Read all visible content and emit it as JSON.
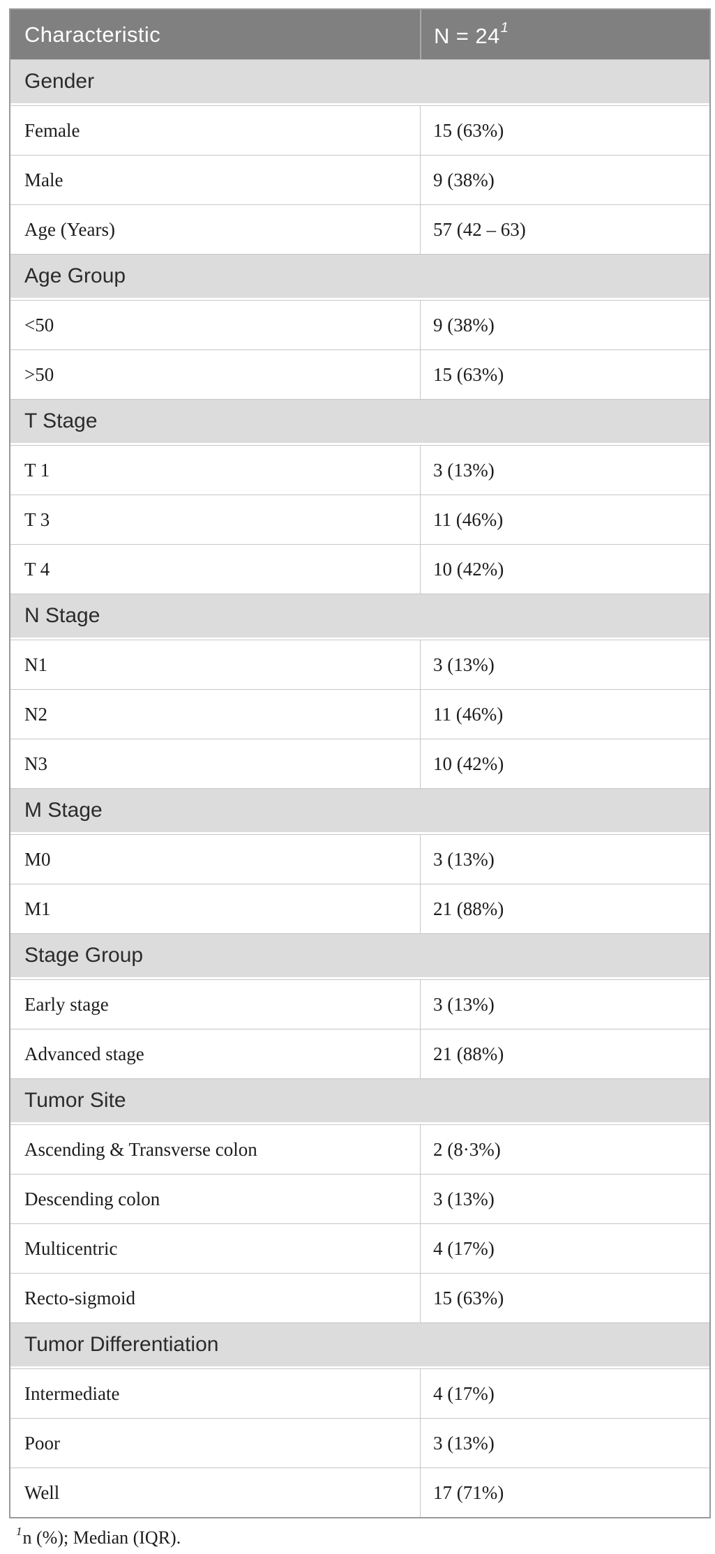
{
  "header": {
    "characteristic_label": "Characteristic",
    "n_label": "N = 24",
    "n_footnote_marker": "1"
  },
  "rows": [
    {
      "type": "section",
      "label": "Gender"
    },
    {
      "type": "data",
      "label": "Female",
      "value": "15 (63%)"
    },
    {
      "type": "data",
      "label": "Male",
      "value": "9 (38%)"
    },
    {
      "type": "data",
      "label": "Age (Years)",
      "value": "57 (42 – 63)"
    },
    {
      "type": "section",
      "label": "Age Group"
    },
    {
      "type": "data",
      "label": "<50",
      "value": "9 (38%)"
    },
    {
      "type": "data",
      "label": ">50",
      "value": "15 (63%)"
    },
    {
      "type": "section",
      "label": "T Stage"
    },
    {
      "type": "data",
      "label": "T 1",
      "value": "3 (13%)"
    },
    {
      "type": "data",
      "label": "T 3",
      "value": "11 (46%)"
    },
    {
      "type": "data",
      "label": "T 4",
      "value": "10 (42%)"
    },
    {
      "type": "section",
      "label": "N Stage"
    },
    {
      "type": "data",
      "label": "N1",
      "value": "3 (13%)"
    },
    {
      "type": "data",
      "label": "N2",
      "value": "11 (46%)"
    },
    {
      "type": "data",
      "label": "N3",
      "value": "10 (42%)"
    },
    {
      "type": "section",
      "label": "M Stage"
    },
    {
      "type": "data",
      "label": "M0",
      "value": "3 (13%)"
    },
    {
      "type": "data",
      "label": "M1",
      "value": "21 (88%)"
    },
    {
      "type": "section",
      "label": "Stage Group"
    },
    {
      "type": "data",
      "label": "Early stage",
      "value": "3 (13%)"
    },
    {
      "type": "data",
      "label": "Advanced stage",
      "value": "21 (88%)"
    },
    {
      "type": "section",
      "label": "Tumor Site"
    },
    {
      "type": "data",
      "label": "Ascending & Transverse colon",
      "value": "2 (8·3%)"
    },
    {
      "type": "data",
      "label": "Descending colon",
      "value": "3 (13%)"
    },
    {
      "type": "data",
      "label": "Multicentric",
      "value": "4 (17%)"
    },
    {
      "type": "data",
      "label": "Recto-sigmoid",
      "value": "15 (63%)"
    },
    {
      "type": "section",
      "label": "Tumor Differentiation"
    },
    {
      "type": "data",
      "label": "Intermediate",
      "value": "4 (17%)"
    },
    {
      "type": "data",
      "label": "Poor",
      "value": "3 (13%)"
    },
    {
      "type": "data",
      "label": "Well",
      "value": "17 (71%)"
    }
  ],
  "footnote": {
    "marker": "1",
    "text": "n (%); Median (IQR)."
  },
  "colors": {
    "header_bg": "#808080",
    "header_text": "#ffffff",
    "section_bg": "#dcdcdc",
    "section_text": "#2b2b2b",
    "data_text": "#1c1c1c",
    "border_outer": "#999999",
    "border_inner": "#c6c6c6",
    "header_divider": "#a8a8a8"
  }
}
